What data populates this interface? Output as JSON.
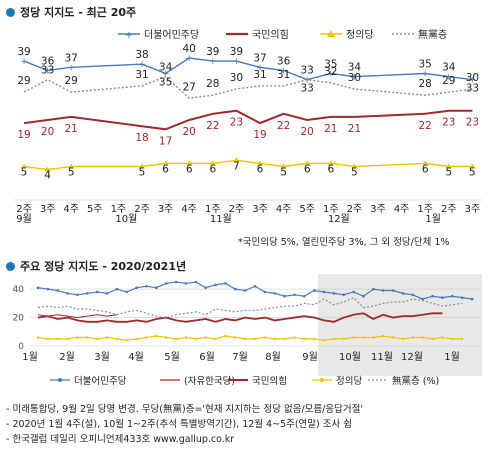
{
  "section1": {
    "title": "정당 지지도 - 최근 20주"
  },
  "section2": {
    "title": "주요 정당 지지도 - 2020/2021년"
  },
  "colors": {
    "dem": "#4a7ab7",
    "ppp": "#9c2a2e",
    "jus": "#f2c200",
    "none": "#8c8c8c",
    "title_dot": "#1f77b4",
    "gray_band": "#e8e8e8"
  },
  "note1": "*국민의당 5%, 열린민주당 3%, 그 외 정당/단체 1%",
  "footer": [
    "- 미래통합당, 9월 2일 당명 변경. 무당(無黨)층='현재 지지하는 정당 없음/모름/응답거절'",
    "- 2020년 1월 4주(설), 10월 1~2주(추석 특별방역기간), 12월 4~5주(연말) 조사 쉼",
    "- 한국갤럽 데일리 오피니언제433호 www.gallup.co.kr"
  ],
  "chart_data": [
    {
      "type": "line",
      "title": "정당 지지도 - 최근 20주",
      "x": [
        "2주",
        "3주",
        "4주",
        "5주",
        "1주",
        "2주",
        "3주",
        "4주",
        "1주",
        "2주",
        "3주",
        "4주",
        "5주",
        "1주",
        "2주",
        "3주",
        "4주",
        "1주",
        "2주",
        "3주"
      ],
      "month_labels": [
        {
          "index": 0,
          "label": "9월"
        },
        {
          "index": 4,
          "label": "10월"
        },
        {
          "index": 8,
          "label": "11월"
        },
        {
          "index": 13,
          "label": "12월"
        },
        {
          "index": 17,
          "label": "1월"
        }
      ],
      "ylim": [
        0,
        45
      ],
      "legend_position": "top",
      "series": [
        {
          "name": "더불어민주당",
          "key": "dem",
          "values": [
            39,
            36,
            37,
            null,
            null,
            38,
            35,
            40,
            39,
            39,
            37,
            36,
            33,
            35,
            34,
            null,
            null,
            35,
            34,
            33
          ]
        },
        {
          "name": "국민의힘",
          "key": "ppp",
          "values": [
            19,
            20,
            21,
            null,
            null,
            18,
            17,
            20,
            22,
            23,
            19,
            22,
            20,
            21,
            21,
            null,
            null,
            22,
            23,
            23
          ]
        },
        {
          "name": "정의당",
          "key": "jus",
          "values": [
            5,
            4,
            5,
            null,
            null,
            5,
            6,
            6,
            6,
            7,
            6,
            5,
            6,
            6,
            5,
            null,
            null,
            6,
            5,
            5
          ]
        },
        {
          "name": "無黨층",
          "key": "none",
          "values": [
            29,
            33,
            29,
            null,
            null,
            31,
            34,
            27,
            28,
            30,
            31,
            31,
            33,
            32,
            30,
            null,
            null,
            28,
            29,
            30
          ]
        }
      ],
      "series_labels": {
        "dem": [
          {
            "i": 0,
            "v": 39
          },
          {
            "i": 1,
            "v": 36
          },
          {
            "i": 2,
            "v": 37
          },
          {
            "i": 5,
            "v": 38
          },
          {
            "i": 6,
            "v": 35
          },
          {
            "i": 7,
            "v": 40
          },
          {
            "i": 8,
            "v": 39
          },
          {
            "i": 9,
            "v": 39
          },
          {
            "i": 10,
            "v": 37
          },
          {
            "i": 11,
            "v": 36
          },
          {
            "i": 12,
            "v": 33
          },
          {
            "i": 13,
            "v": 35
          },
          {
            "i": 14,
            "v": 34
          },
          {
            "i": 17,
            "v": 35
          },
          {
            "i": 18,
            "v": 34
          },
          {
            "i": 19,
            "v": 33
          }
        ],
        "ppp": [
          {
            "i": 0,
            "v": 19
          },
          {
            "i": 1,
            "v": 20
          },
          {
            "i": 2,
            "v": 21
          },
          {
            "i": 5,
            "v": 18
          },
          {
            "i": 6,
            "v": 17
          },
          {
            "i": 7,
            "v": 20
          },
          {
            "i": 8,
            "v": 22
          },
          {
            "i": 9,
            "v": 23
          },
          {
            "i": 10,
            "v": 19
          },
          {
            "i": 11,
            "v": 22
          },
          {
            "i": 12,
            "v": 20
          },
          {
            "i": 13,
            "v": 21
          },
          {
            "i": 14,
            "v": 21
          },
          {
            "i": 17,
            "v": 22
          },
          {
            "i": 18,
            "v": 23
          },
          {
            "i": 19,
            "v": 23
          }
        ],
        "jus": [
          {
            "i": 0,
            "v": 5
          },
          {
            "i": 1,
            "v": 4
          },
          {
            "i": 2,
            "v": 5
          },
          {
            "i": 5,
            "v": 5
          },
          {
            "i": 6,
            "v": 6
          },
          {
            "i": 7,
            "v": 6
          },
          {
            "i": 8,
            "v": 6
          },
          {
            "i": 9,
            "v": 7
          },
          {
            "i": 10,
            "v": 6
          },
          {
            "i": 11,
            "v": 5
          },
          {
            "i": 12,
            "v": 6
          },
          {
            "i": 13,
            "v": 6
          },
          {
            "i": 14,
            "v": 5
          },
          {
            "i": 17,
            "v": 6
          },
          {
            "i": 18,
            "v": 5
          },
          {
            "i": 19,
            "v": 5
          }
        ],
        "none": [
          {
            "i": 0,
            "v": 29
          },
          {
            "i": 1,
            "v": 33
          },
          {
            "i": 2,
            "v": 29
          },
          {
            "i": 5,
            "v": 31
          },
          {
            "i": 6,
            "v": 34
          },
          {
            "i": 7,
            "v": 27
          },
          {
            "i": 8,
            "v": 28
          },
          {
            "i": 9,
            "v": 30
          },
          {
            "i": 10,
            "v": 31
          },
          {
            "i": 11,
            "v": 31
          },
          {
            "i": 12,
            "v": 33
          },
          {
            "i": 13,
            "v": 32
          },
          {
            "i": 14,
            "v": 30
          },
          {
            "i": 17,
            "v": 28
          },
          {
            "i": 18,
            "v": 29
          },
          {
            "i": 19,
            "v": 30
          }
        ]
      }
    },
    {
      "type": "line",
      "title": "주요 정당 지지도 - 2020/2021년",
      "yticks": [
        0,
        20,
        40
      ],
      "ylim": [
        0,
        45
      ],
      "grid": true,
      "x_month_labels": [
        "1월",
        "2월",
        "3월",
        "4월",
        "5월",
        "6월",
        "7월",
        "8월",
        "9월",
        "10월",
        "11월",
        "12월",
        "1월"
      ],
      "highlight_band": "2020년 10월 ~ 2021년 1월",
      "legend_position": "bottom",
      "legend": [
        {
          "name": "더불어민주당",
          "key": "dem"
        },
        {
          "name": "(자유한국당)",
          "key": "lkp"
        },
        {
          "name": "국민의힘",
          "key": "ppp"
        },
        {
          "name": "정의당",
          "key": "jus"
        },
        {
          "name": "無黨층 (%)",
          "key": "none"
        }
      ],
      "series": [
        {
          "key": "dem",
          "values": [
            41,
            40,
            39,
            37,
            36,
            37,
            38,
            37,
            40,
            38,
            41,
            42,
            41,
            44,
            45,
            44,
            45,
            41,
            43,
            44,
            40,
            39,
            42,
            38,
            37,
            35,
            36,
            35,
            39,
            38,
            37,
            36,
            38,
            35,
            40,
            39,
            39,
            37,
            36,
            33,
            35,
            34,
            35,
            34,
            33
          ]
        },
        {
          "key": "lkp",
          "values": [
            22,
            21,
            22,
            21,
            20,
            21,
            22,
            21,
            22
          ]
        },
        {
          "key": "ppp",
          "values": [
            20,
            21,
            19,
            20,
            18,
            17,
            17,
            18,
            17,
            17,
            18,
            17,
            19,
            20,
            18,
            17,
            18,
            19,
            17,
            19,
            18,
            20,
            19,
            20,
            18,
            19,
            20,
            21,
            20,
            18,
            17,
            20,
            22,
            23,
            19,
            22,
            20,
            21,
            21,
            22,
            23,
            23
          ]
        },
        {
          "key": "jus",
          "values": [
            6,
            5,
            5,
            5,
            6,
            6,
            5,
            6,
            5,
            4,
            5,
            6,
            7,
            6,
            5,
            6,
            5,
            6,
            5,
            7,
            6,
            5,
            5,
            6,
            5,
            5,
            6,
            5,
            5,
            4,
            5,
            5,
            6,
            6,
            6,
            7,
            6,
            5,
            6,
            6,
            5,
            6,
            5,
            5
          ]
        },
        {
          "key": "none",
          "values": [
            27,
            28,
            27,
            28,
            26,
            26,
            25,
            24,
            22,
            24,
            25,
            23,
            21,
            20,
            22,
            23,
            24,
            22,
            26,
            25,
            24,
            25,
            25,
            26,
            27,
            28,
            28,
            30,
            29,
            33,
            29,
            31,
            34,
            27,
            28,
            30,
            31,
            31,
            33,
            32,
            30,
            28,
            29,
            30
          ]
        }
      ]
    }
  ]
}
